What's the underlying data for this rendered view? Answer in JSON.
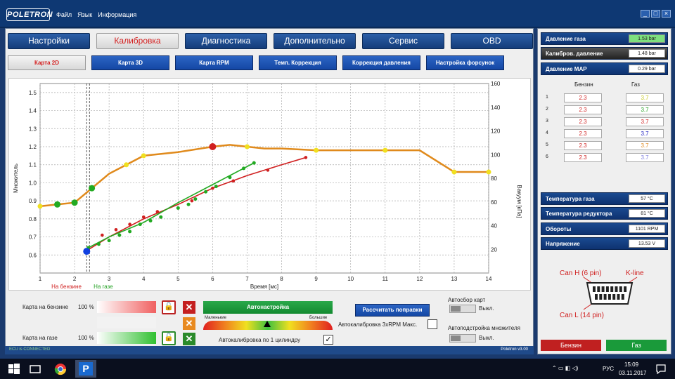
{
  "app": {
    "logo": "POLETRON",
    "menu": [
      "Файл",
      "Язык",
      "Информация"
    ]
  },
  "window_controls": [
    "_",
    "□",
    "×"
  ],
  "tabs_main": [
    {
      "label": "Настройки",
      "active": false
    },
    {
      "label": "Калибровка",
      "active": true
    },
    {
      "label": "Диагностика",
      "active": false
    },
    {
      "label": "Дополнительно",
      "active": false
    },
    {
      "label": "Сервис",
      "active": false
    },
    {
      "label": "OBD",
      "active": false
    }
  ],
  "tabs_sub": [
    {
      "label": "Карта 2D",
      "active": true
    },
    {
      "label": "Карта 3D",
      "active": false
    },
    {
      "label": "Карта RPM",
      "active": false
    },
    {
      "label": "Темп. Коррекция",
      "active": false
    },
    {
      "label": "Коррекция давления",
      "active": false
    },
    {
      "label": "Настройка форсунок",
      "active": false
    }
  ],
  "chart_data": {
    "type": "line",
    "xlabel": "Время [мс]",
    "ylabel": "Множитель",
    "y2label": "Вакуум [кПа]",
    "x_ticks": [
      1,
      2,
      3,
      4,
      5,
      6,
      7,
      8,
      9,
      10,
      11,
      12,
      13,
      14
    ],
    "y_ticks": [
      0.6,
      0.7,
      0.8,
      0.9,
      1.0,
      1.1,
      1.2,
      1.3,
      1.4,
      1.5
    ],
    "y2_ticks": [
      20,
      40,
      60,
      80,
      100,
      120,
      140,
      160
    ],
    "xlim": [
      1,
      14
    ],
    "ylim": [
      0.5,
      1.55
    ],
    "y2lim": [
      0,
      160
    ],
    "grid": true,
    "markers": {
      "petrol_label": "На бензине",
      "petrol_x": 2.35,
      "gas_label": "На газе",
      "gas_x": 2.35
    },
    "series": [
      {
        "color": "#e08a1c",
        "x": [
          1,
          1.5,
          2,
          2.5,
          3,
          3.5,
          4,
          5,
          6,
          6.5,
          7,
          7.5,
          8,
          9,
          10,
          11,
          12,
          13,
          14
        ],
        "y": [
          0.87,
          0.88,
          0.89,
          0.97,
          1.05,
          1.1,
          1.15,
          1.17,
          1.2,
          1.21,
          1.2,
          1.19,
          1.19,
          1.18,
          1.18,
          1.18,
          1.18,
          1.06,
          1.06
        ]
      },
      {
        "color": "#d02020",
        "x": [
          2.4,
          3,
          4,
          5,
          6,
          7,
          8,
          8.7
        ],
        "y": [
          0.63,
          0.7,
          0.8,
          0.88,
          0.97,
          1.04,
          1.1,
          1.14
        ]
      },
      {
        "color": "#22aa22",
        "x": [
          2.4,
          3,
          4,
          5,
          6,
          6.5,
          7.2
        ],
        "y": [
          0.64,
          0.7,
          0.78,
          0.89,
          0.99,
          1.04,
          1.11
        ]
      }
    ],
    "special_points": [
      {
        "x": 2.35,
        "y": 0.62,
        "color": "#1040e0"
      },
      {
        "x": 6,
        "y": 1.2,
        "color": "#d02020"
      }
    ],
    "points_yellow": [
      [
        1,
        0.87
      ],
      [
        3.5,
        1.1
      ],
      [
        4,
        1.15
      ],
      [
        7,
        1.2
      ],
      [
        9,
        1.18
      ],
      [
        11,
        1.18
      ],
      [
        13,
        1.06
      ],
      [
        14,
        1.06
      ]
    ],
    "points_green_main": [
      [
        1.5,
        0.88
      ],
      [
        2,
        0.89
      ],
      [
        2.5,
        0.97
      ]
    ],
    "points_green_small": [
      [
        2.4,
        0.64
      ],
      [
        2.7,
        0.66
      ],
      [
        3,
        0.68
      ],
      [
        3.3,
        0.71
      ],
      [
        3.6,
        0.73
      ],
      [
        3.9,
        0.77
      ],
      [
        4.2,
        0.79
      ],
      [
        4.5,
        0.81
      ],
      [
        5,
        0.86
      ],
      [
        5.3,
        0.88
      ],
      [
        5.5,
        0.91
      ],
      [
        5.8,
        0.95
      ],
      [
        6.1,
        0.98
      ],
      [
        6.5,
        1.03
      ],
      [
        6.9,
        1.08
      ],
      [
        7.2,
        1.11
      ]
    ],
    "points_red_small": [
      [
        2.4,
        0.63
      ],
      [
        2.8,
        0.71
      ],
      [
        3.2,
        0.74
      ],
      [
        3.6,
        0.77
      ],
      [
        4,
        0.81
      ],
      [
        4.4,
        0.84
      ],
      [
        5,
        0.86
      ],
      [
        5.4,
        0.9
      ],
      [
        6,
        0.97
      ],
      [
        6.6,
        1.01
      ],
      [
        7.6,
        1.07
      ],
      [
        8.7,
        1.14
      ]
    ]
  },
  "bottom": {
    "map_petrol_label": "Карта на бензине",
    "map_petrol_pct": "100 %",
    "map_gas_label": "Карта на газе",
    "map_gas_pct": "100 %",
    "x_symbol": "✕",
    "auto_tune_label": "Автонастройка",
    "gauge_small": "Маленькие",
    "gauge_large": "Большие",
    "autocal_cyl_label": "Автокалибровка по 1 цилиндру",
    "autocal_cyl_check": "✓",
    "calc_button": "Рассчитать поправки",
    "autocal_rpm_label": "Автокалибровка 3xRPM Макс.",
    "autosave_label": "Автосбор карт",
    "autosave_state": "Выкл.",
    "autoadj_label": "Автоподстройка множителя",
    "autoadj_state": "Выкл."
  },
  "status": {
    "left": "ECU is CONNECTED",
    "right": "Poletron v3.00"
  },
  "right_panel": {
    "sensors_top": [
      {
        "name": "Давление газа",
        "value": "1.53 bar",
        "green": true,
        "dark": false
      },
      {
        "name": "Калибров. давление",
        "value": "1.48 bar",
        "green": false,
        "dark": true
      },
      {
        "name": "Давление MAP",
        "value": "0.29 bar",
        "green": false,
        "dark": false
      }
    ],
    "cyl_head_petrol": "Бензин",
    "cyl_head_gas": "Газ",
    "cylinders": [
      {
        "n": "1",
        "petrol": "2.3",
        "gas": "3.7",
        "gas_color": "#c8c820"
      },
      {
        "n": "2",
        "petrol": "2.3",
        "gas": "3.7",
        "gas_color": "#20a020"
      },
      {
        "n": "3",
        "petrol": "2.3",
        "gas": "3.7",
        "gas_color": "#d02020"
      },
      {
        "n": "4",
        "petrol": "2.3",
        "gas": "3.7",
        "gas_color": "#2020c0"
      },
      {
        "n": "5",
        "petrol": "2.3",
        "gas": "3.7",
        "gas_color": "#e08a20"
      },
      {
        "n": "6",
        "petrol": "2.3",
        "gas": "3.7",
        "gas_color": "#8080e0"
      }
    ],
    "sensors_bottom": [
      {
        "name": "Температура газа",
        "value": "57 °C"
      },
      {
        "name": "Температура редуктора",
        "value": "81 °C"
      },
      {
        "name": "Обороты",
        "value": "1101 RPM"
      },
      {
        "name": "Напряжение",
        "value": "13.53 V"
      }
    ],
    "obd": {
      "can_h": "Can H (6 pin)",
      "kline": "K-line",
      "can_l": "Can L (14 pin)"
    },
    "btn_petrol": "Бензин",
    "btn_gas": "Газ"
  },
  "taskbar": {
    "lang": "РУС",
    "time": "15:09",
    "date": "03.11.2017"
  }
}
